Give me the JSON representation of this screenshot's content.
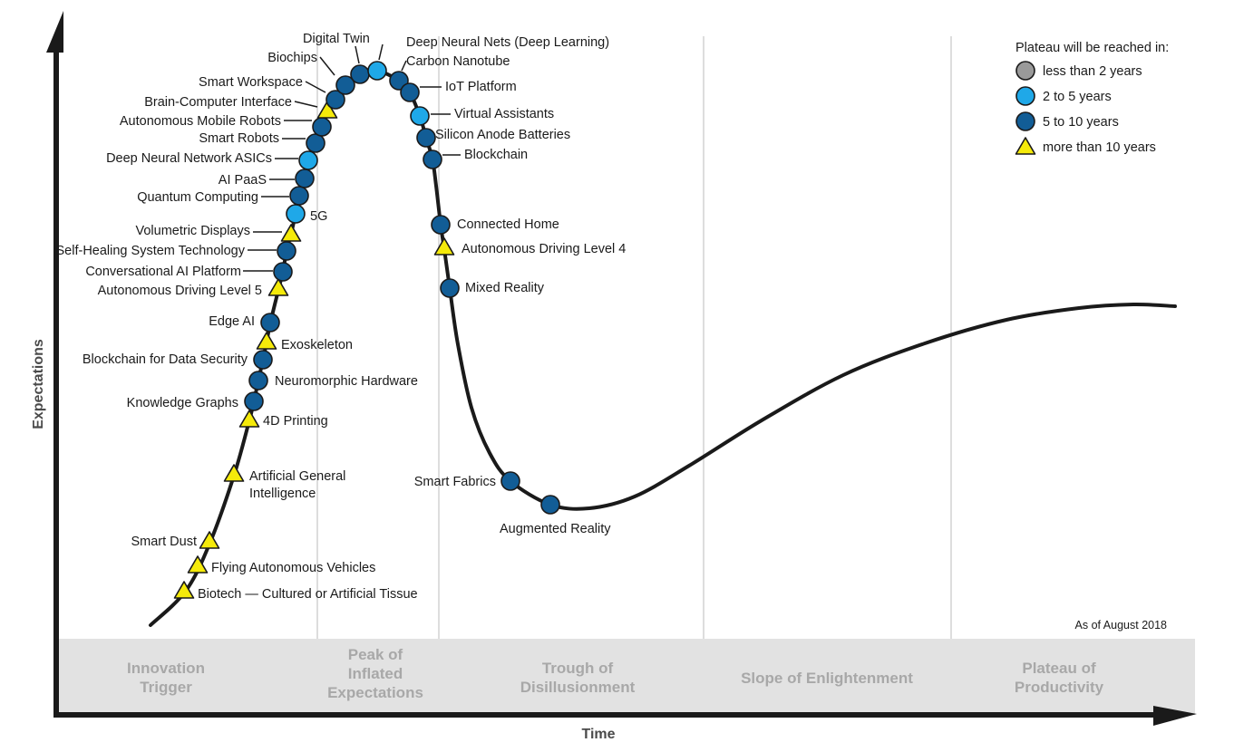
{
  "chart_data": {
    "type": "scatter",
    "title": "",
    "xlabel": "Time",
    "ylabel": "Expectations",
    "note": "As of August 2018",
    "legend": {
      "title": "Plateau will be reached in:",
      "position": "top-right",
      "items": [
        {
          "key": "lt2",
          "label": "less than 2 years",
          "shape": "circle",
          "color": "#9a9a9a"
        },
        {
          "key": "2to5",
          "label": "2 to 5 years",
          "shape": "circle",
          "color": "#1fa8e8"
        },
        {
          "key": "5to10",
          "label": "5 to 10 years",
          "shape": "circle",
          "color": "#125d96"
        },
        {
          "key": "gt10",
          "label": "more than 10 years",
          "shape": "triangle",
          "color": "#f5ea0a"
        }
      ]
    },
    "phases": [
      {
        "label": [
          "Innovation",
          "Trigger"
        ]
      },
      {
        "label": [
          "Peak of",
          "Inflated",
          "Expectations"
        ]
      },
      {
        "label": [
          "Trough of",
          "Disillusionment"
        ]
      },
      {
        "label": [
          "Slope of Enlightenment"
        ]
      },
      {
        "label": [
          "Plateau of",
          "Productivity"
        ]
      }
    ],
    "points": [
      {
        "label": "Biotech — Cultured or Artificial Tissue",
        "plateau": "gt10"
      },
      {
        "label": "Flying Autonomous Vehicles",
        "plateau": "gt10"
      },
      {
        "label": "Smart Dust",
        "plateau": "gt10"
      },
      {
        "label": [
          "Artificial General",
          "Intelligence"
        ],
        "plateau": "gt10"
      },
      {
        "label": "4D Printing",
        "plateau": "gt10"
      },
      {
        "label": "Knowledge Graphs",
        "plateau": "5to10"
      },
      {
        "label": "Neuromorphic Hardware",
        "plateau": "5to10"
      },
      {
        "label": "Blockchain for Data Security",
        "plateau": "5to10"
      },
      {
        "label": "Exoskeleton",
        "plateau": "gt10"
      },
      {
        "label": "Edge AI",
        "plateau": "5to10"
      },
      {
        "label": "Autonomous Driving Level 5",
        "plateau": "gt10"
      },
      {
        "label": "Conversational AI Platform",
        "plateau": "5to10"
      },
      {
        "label": "Self-Healing System Technology",
        "plateau": "5to10"
      },
      {
        "label": "Volumetric Displays",
        "plateau": "gt10"
      },
      {
        "label": "5G",
        "plateau": "2to5"
      },
      {
        "label": "Quantum Computing",
        "plateau": "5to10"
      },
      {
        "label": "AI PaaS",
        "plateau": "5to10"
      },
      {
        "label": "Deep Neural Network ASICs",
        "plateau": "2to5"
      },
      {
        "label": "Smart Robots",
        "plateau": "5to10"
      },
      {
        "label": "Autonomous Mobile Robots",
        "plateau": "5to10"
      },
      {
        "label": "Brain-Computer Interface",
        "plateau": "gt10"
      },
      {
        "label": "Smart Workspace",
        "plateau": "5to10"
      },
      {
        "label": "Biochips",
        "plateau": "5to10"
      },
      {
        "label": "Digital Twin",
        "plateau": "5to10"
      },
      {
        "label": "Deep Neural Nets (Deep Learning)",
        "plateau": "2to5"
      },
      {
        "label": "Carbon Nanotube",
        "plateau": "5to10"
      },
      {
        "label": "IoT Platform",
        "plateau": "5to10"
      },
      {
        "label": "Virtual Assistants",
        "plateau": "2to5"
      },
      {
        "label": "Silicon Anode Batteries",
        "plateau": "5to10"
      },
      {
        "label": "Blockchain",
        "plateau": "5to10"
      },
      {
        "label": "Connected Home",
        "plateau": "5to10"
      },
      {
        "label": "Autonomous Driving Level 4",
        "plateau": "gt10"
      },
      {
        "label": "Mixed Reality",
        "plateau": "5to10"
      },
      {
        "label": "Smart Fabrics",
        "plateau": "5to10"
      },
      {
        "label": "Augmented Reality",
        "plateau": "5to10"
      }
    ]
  }
}
